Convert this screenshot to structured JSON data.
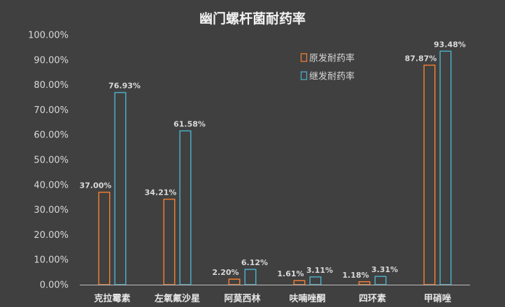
{
  "chart_data": {
    "type": "bar",
    "title": "幽门螺杆菌耐药率",
    "xlabel": "",
    "ylabel": "",
    "categories": [
      "克拉霉素",
      "左氧氟沙星",
      "阿莫西林",
      "呋喃唑酮",
      "四环素",
      "甲硝唑"
    ],
    "series": [
      {
        "name": "原发耐药率",
        "color": "#ed7d31",
        "values": [
          37.0,
          34.21,
          2.2,
          1.61,
          1.18,
          87.87
        ],
        "labels": [
          "37.00%",
          "34.21%",
          "2.20%",
          "1.61%",
          "1.18%",
          "87.87%"
        ]
      },
      {
        "name": "继发耐药率",
        "color": "#4bacc6",
        "values": [
          76.93,
          61.58,
          6.12,
          3.11,
          3.31,
          93.48
        ],
        "labels": [
          "76.93%",
          "61.58%",
          "6.12%",
          "3.11%",
          "3.31%",
          "93.48%"
        ]
      }
    ],
    "ylim": [
      0,
      100
    ],
    "yticks": [
      {
        "value": 0,
        "label": "0.00%"
      },
      {
        "value": 10,
        "label": "10.00%"
      },
      {
        "value": 20,
        "label": "20.00%"
      },
      {
        "value": 30,
        "label": "30.00%"
      },
      {
        "value": 40,
        "label": "40.00%"
      },
      {
        "value": 50,
        "label": "50.00%"
      },
      {
        "value": 60,
        "label": "60.00%"
      },
      {
        "value": 70,
        "label": "70.00%"
      },
      {
        "value": 80,
        "label": "80.00%"
      },
      {
        "value": 90,
        "label": "90.00%"
      },
      {
        "value": 100,
        "label": "100.00%"
      }
    ],
    "grid": false,
    "legend": "top-right",
    "background_color": "#404040",
    "axis_color": "#bfbfbf"
  }
}
